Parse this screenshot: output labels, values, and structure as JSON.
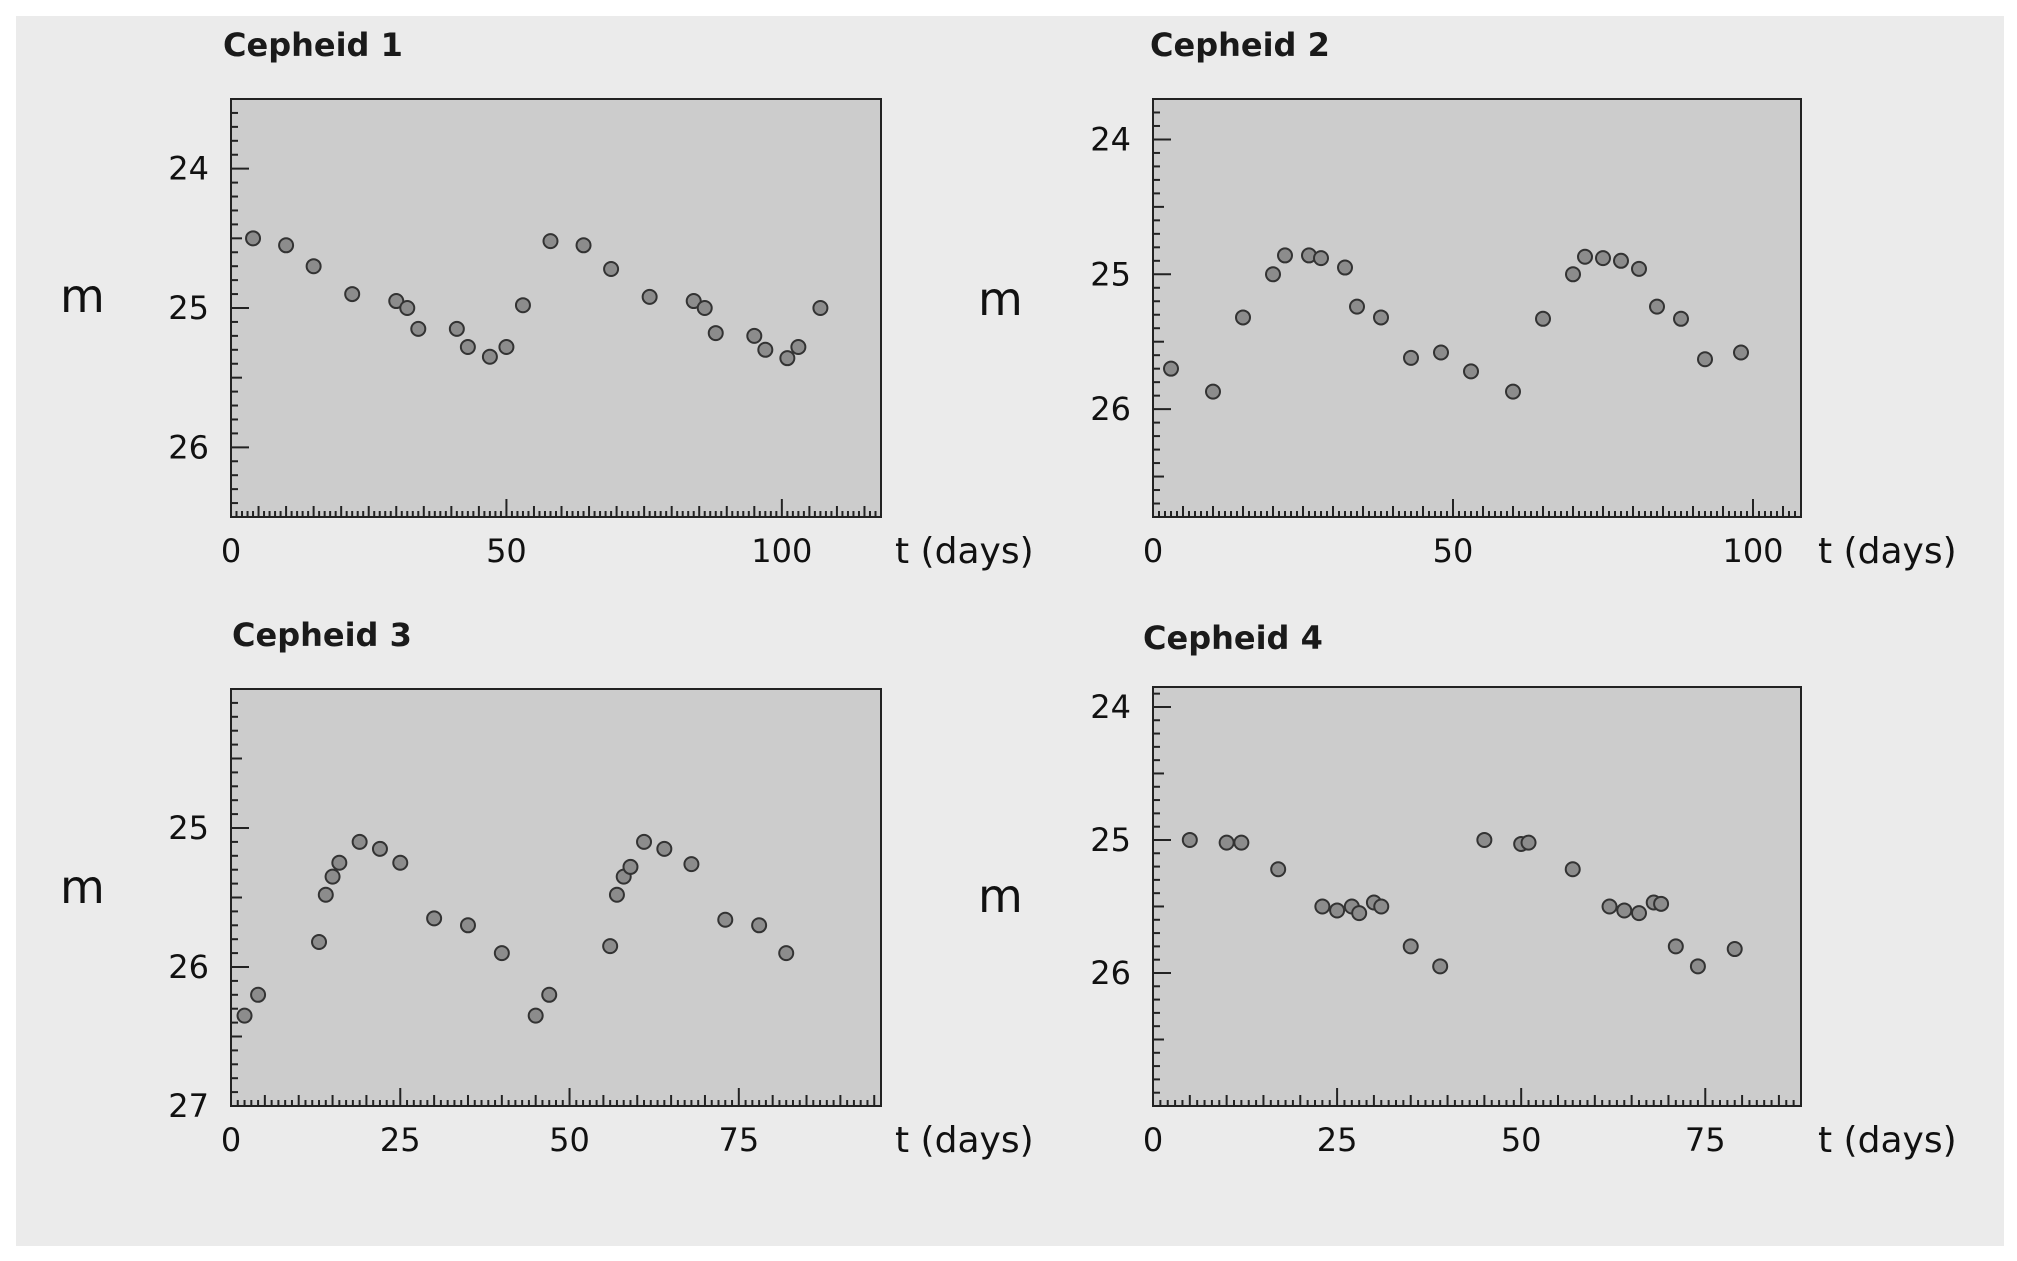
{
  "colors": {
    "page": "#ffffff",
    "panel_bg": "#ebebeb",
    "plot_bg": "#cccccc",
    "marker_fill": "#8c8c8c",
    "marker_edge": "#333333"
  },
  "chart_data": [
    {
      "type": "scatter",
      "title": "Cepheid 1",
      "xlabel": "t (days)",
      "ylabel": "m",
      "xlim": [
        0,
        118
      ],
      "ylim": [
        26.5,
        23.5
      ],
      "y_inverted": true,
      "grid": false,
      "xticks": [
        0,
        50,
        100
      ],
      "yticks": [
        24,
        25,
        26
      ],
      "x": [
        4,
        10,
        15,
        22,
        30,
        32,
        34,
        41,
        43,
        47,
        50,
        53,
        58,
        64,
        69,
        76,
        84,
        86,
        88,
        95,
        97,
        101,
        103,
        107
      ],
      "y": [
        24.5,
        24.55,
        24.7,
        24.9,
        24.95,
        25.0,
        25.15,
        25.15,
        25.28,
        25.35,
        25.28,
        24.98,
        24.52,
        24.55,
        24.72,
        24.92,
        24.95,
        25.0,
        25.18,
        25.2,
        25.3,
        25.36,
        25.28,
        25.0
      ]
    },
    {
      "type": "scatter",
      "title": "Cepheid 2",
      "xlabel": "t (days)",
      "ylabel": "m",
      "xlim": [
        0,
        108
      ],
      "ylim": [
        26.8,
        23.7
      ],
      "y_inverted": true,
      "grid": false,
      "xticks": [
        0,
        50,
        100
      ],
      "yticks": [
        24,
        25,
        26
      ],
      "x": [
        3,
        10,
        15,
        20,
        22,
        26,
        28,
        32,
        34,
        38,
        43,
        48,
        53,
        60,
        65,
        70,
        72,
        75,
        78,
        81,
        84,
        88,
        92,
        98
      ],
      "y": [
        25.7,
        25.87,
        25.32,
        25.0,
        24.86,
        24.86,
        24.88,
        24.95,
        25.24,
        25.32,
        25.62,
        25.58,
        25.72,
        25.87,
        25.33,
        25.0,
        24.87,
        24.88,
        24.9,
        24.96,
        25.24,
        25.33,
        25.63,
        25.58
      ]
    },
    {
      "type": "scatter",
      "title": "Cepheid 3",
      "xlabel": "t (days)",
      "ylabel": "m",
      "xlim": [
        0,
        96
      ],
      "ylim": [
        27.0,
        24.0
      ],
      "y_inverted": true,
      "grid": false,
      "xticks": [
        0,
        25,
        50,
        75
      ],
      "yticks": [
        25,
        26,
        27
      ],
      "x": [
        2,
        4,
        13,
        14,
        15,
        16,
        19,
        22,
        25,
        30,
        35,
        40,
        45,
        47,
        56,
        57,
        58,
        59,
        61,
        64,
        68,
        73,
        78,
        82
      ],
      "y": [
        26.35,
        26.2,
        25.82,
        25.48,
        25.35,
        25.25,
        25.1,
        25.15,
        25.25,
        25.65,
        25.7,
        25.9,
        26.35,
        26.2,
        25.85,
        25.48,
        25.35,
        25.28,
        25.1,
        25.15,
        25.26,
        25.66,
        25.7,
        25.9
      ]
    },
    {
      "type": "scatter",
      "title": "Cepheid 4",
      "xlabel": "t (days)",
      "ylabel": "m",
      "xlim": [
        0,
        88
      ],
      "ylim": [
        27.0,
        23.85
      ],
      "y_inverted": true,
      "grid": false,
      "xticks": [
        0,
        25,
        50,
        75
      ],
      "yticks": [
        24,
        25,
        26
      ],
      "x": [
        5,
        10,
        12,
        17,
        23,
        25,
        27,
        28,
        30,
        31,
        35,
        39,
        45,
        50,
        51,
        57,
        62,
        64,
        66,
        68,
        69,
        71,
        74,
        79
      ],
      "y": [
        25.0,
        25.02,
        25.02,
        25.22,
        25.5,
        25.53,
        25.5,
        25.55,
        25.47,
        25.5,
        25.8,
        25.95,
        25.0,
        25.03,
        25.02,
        25.22,
        25.5,
        25.53,
        25.55,
        25.47,
        25.48,
        25.8,
        25.95,
        25.82
      ]
    }
  ]
}
